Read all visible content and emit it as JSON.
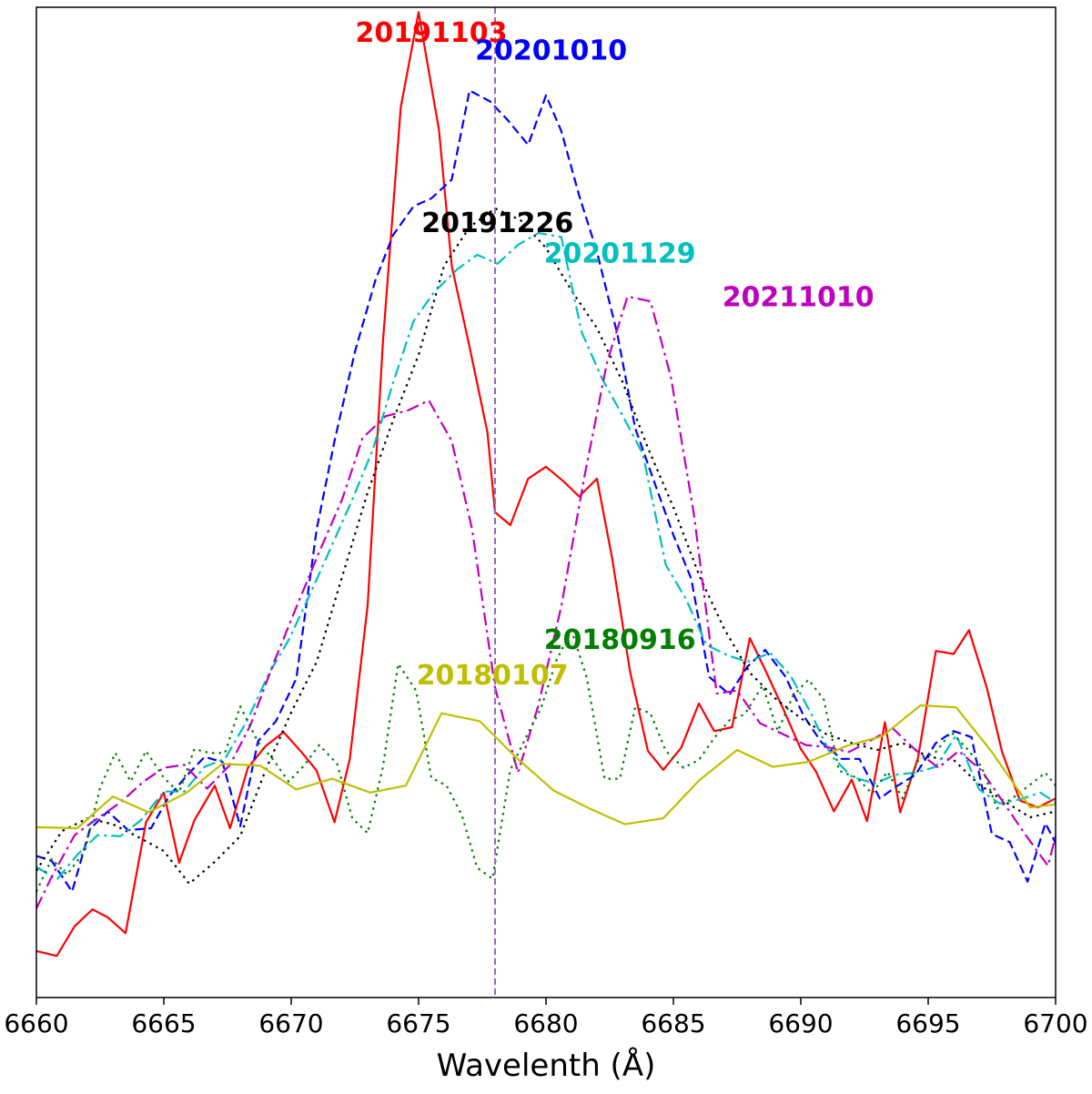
{
  "chart_data": {
    "type": "line",
    "title": "",
    "xlabel": "Wavelenth (Å)",
    "ylabel": "",
    "xlim": [
      6660,
      6700
    ],
    "ylim": [
      0,
      1
    ],
    "grid": false,
    "legend": "none",
    "reference_line": {
      "x": 6678,
      "color": "#9467bd",
      "style": "dashed"
    },
    "x_ticks": [
      "6660",
      "6665",
      "6670",
      "6675",
      "6680",
      "6685",
      "6690",
      "6695",
      "6700"
    ],
    "series": [
      {
        "name": "20191103",
        "color": "#ff0000",
        "dash": "solid",
        "label_at": [
          6675.5,
          0.965
        ],
        "x": [
          6660,
          6660.8,
          6661.5,
          6662.2,
          6662.8,
          6663.5,
          6664.3,
          6665,
          6665.6,
          6666.2,
          6667,
          6667.6,
          6668.3,
          6669,
          6669.7,
          6670.4,
          6671,
          6671.7,
          6672.3,
          6673,
          6673.6,
          6674.3,
          6675,
          6675.8,
          6676.3,
          6677,
          6677.7,
          6678,
          6678.6,
          6679.3,
          6680,
          6680.7,
          6681.3,
          6682,
          6682.6,
          6683.3,
          6684,
          6684.6,
          6685.3,
          6686,
          6686.6,
          6687.3,
          6688,
          6688.6,
          6689.3,
          6690,
          6690.6,
          6691.3,
          6692,
          6692.6,
          6693.3,
          6693.9,
          6694.6,
          6695.3,
          6696,
          6696.6,
          6697.3,
          6697.9,
          6698.6,
          6699.3,
          6700
        ],
        "y": [
          0.047,
          0.042,
          0.072,
          0.089,
          0.081,
          0.065,
          0.177,
          0.207,
          0.136,
          0.179,
          0.214,
          0.171,
          0.232,
          0.254,
          0.268,
          0.248,
          0.229,
          0.177,
          0.241,
          0.396,
          0.662,
          0.899,
          0.995,
          0.876,
          0.739,
          0.657,
          0.571,
          0.49,
          0.477,
          0.524,
          0.536,
          0.521,
          0.506,
          0.524,
          0.443,
          0.329,
          0.249,
          0.23,
          0.252,
          0.297,
          0.269,
          0.273,
          0.363,
          0.331,
          0.292,
          0.251,
          0.228,
          0.188,
          0.22,
          0.178,
          0.278,
          0.187,
          0.242,
          0.35,
          0.347,
          0.371,
          0.313,
          0.248,
          0.199,
          0.192,
          0.201
        ]
      },
      {
        "name": "20201010",
        "color": "#0000ff",
        "dash": "dashed",
        "label_at": [
          6680.2,
          0.947
        ],
        "x": [
          6660,
          6660.6,
          6661.4,
          6662.1,
          6662.8,
          6663.6,
          6664.5,
          6665.2,
          6665.9,
          6666.6,
          6667.3,
          6668,
          6668.7,
          6669.4,
          6670.2,
          6671,
          6671.7,
          6672.5,
          6673.3,
          6674,
          6674.8,
          6675.5,
          6676.3,
          6677,
          6677.8,
          6678.5,
          6679.3,
          6680,
          6680.6,
          6681.3,
          6682,
          6682.8,
          6683.5,
          6684.3,
          6685,
          6685.7,
          6686.4,
          6687.2,
          6687.9,
          6688.6,
          6689.4,
          6690.1,
          6690.8,
          6691.6,
          6692.3,
          6693.1,
          6693.8,
          6694.5,
          6695.3,
          6696,
          6696.7,
          6697.5,
          6698.2,
          6698.9,
          6699.6,
          6700
        ],
        "y": [
          0.143,
          0.138,
          0.107,
          0.17,
          0.188,
          0.169,
          0.171,
          0.203,
          0.224,
          0.243,
          0.238,
          0.173,
          0.259,
          0.279,
          0.322,
          0.473,
          0.562,
          0.652,
          0.724,
          0.77,
          0.799,
          0.807,
          0.826,
          0.916,
          0.905,
          0.886,
          0.861,
          0.911,
          0.875,
          0.81,
          0.753,
          0.67,
          0.575,
          0.517,
          0.467,
          0.423,
          0.324,
          0.306,
          0.334,
          0.351,
          0.324,
          0.285,
          0.258,
          0.241,
          0.241,
          0.201,
          0.214,
          0.225,
          0.257,
          0.269,
          0.263,
          0.165,
          0.157,
          0.117,
          0.176,
          0.156
        ]
      },
      {
        "name": "20191226",
        "color": "#000000",
        "dash": "dotted",
        "label_at": [
          6678.1,
          0.773
        ],
        "x": [
          6660,
          6661,
          6662,
          6663,
          6664,
          6665,
          6666,
          6667,
          6668,
          6669,
          6670,
          6671,
          6672,
          6673,
          6674,
          6675,
          6676,
          6677,
          6678,
          6679,
          6680,
          6681,
          6682,
          6683,
          6684,
          6685,
          6686,
          6687,
          6688,
          6689,
          6690,
          6691,
          6692,
          6693,
          6694,
          6695,
          6696,
          6697,
          6698,
          6699,
          6700
        ],
        "y": [
          0.128,
          0.168,
          0.181,
          0.175,
          0.162,
          0.148,
          0.115,
          0.137,
          0.163,
          0.23,
          0.288,
          0.339,
          0.425,
          0.51,
          0.583,
          0.649,
          0.739,
          0.778,
          0.797,
          0.785,
          0.757,
          0.714,
          0.676,
          0.622,
          0.555,
          0.495,
          0.427,
          0.372,
          0.328,
          0.302,
          0.282,
          0.266,
          0.257,
          0.25,
          0.257,
          0.243,
          0.24,
          0.215,
          0.198,
          0.182,
          0.188
        ]
      },
      {
        "name": "20201129",
        "color": "#00bfbf",
        "dash": "dashdot",
        "label_at": [
          6682.9,
          0.742
        ],
        "x": [
          6660,
          6660.8,
          6661.6,
          6662.4,
          6663.3,
          6664.1,
          6665,
          6665.8,
          6666.6,
          6667.4,
          6668.3,
          6669.1,
          6669.9,
          6670.7,
          6671.5,
          6672.4,
          6673.2,
          6674,
          6674.8,
          6675.6,
          6676.5,
          6677.3,
          6678.1,
          6678.9,
          6679.7,
          6680.6,
          6681.4,
          6682.2,
          6683,
          6683.8,
          6684.7,
          6685.5,
          6686.3,
          6687.1,
          6687.9,
          6688.8,
          6689.6,
          6690.4,
          6691.2,
          6692,
          6692.9,
          6693.7,
          6694.5,
          6695.3,
          6696.1,
          6697,
          6697.8,
          6698.6,
          6699.4,
          6700
        ],
        "y": [
          0.132,
          0.119,
          0.144,
          0.164,
          0.163,
          0.179,
          0.208,
          0.208,
          0.233,
          0.241,
          0.281,
          0.326,
          0.361,
          0.405,
          0.451,
          0.503,
          0.553,
          0.621,
          0.683,
          0.712,
          0.735,
          0.75,
          0.741,
          0.76,
          0.772,
          0.768,
          0.672,
          0.625,
          0.588,
          0.549,
          0.437,
          0.402,
          0.356,
          0.346,
          0.339,
          0.348,
          0.325,
          0.287,
          0.244,
          0.223,
          0.216,
          0.225,
          0.227,
          0.233,
          0.265,
          0.21,
          0.196,
          0.2,
          0.207,
          0.197
        ]
      },
      {
        "name": "20211010",
        "color": "#bf00bf",
        "dash": "dashdot",
        "label_at": [
          6689.9,
          0.698
        ],
        "x": [
          6660,
          6660.6,
          6661.5,
          6662.4,
          6663.3,
          6664.2,
          6665,
          6665.8,
          6666.7,
          6667.6,
          6668.4,
          6669.3,
          6670.2,
          6671.1,
          6672,
          6672.8,
          6673.7,
          6674.6,
          6675.4,
          6676.3,
          6677.1,
          6678,
          6678.9,
          6679.7,
          6680.6,
          6681.5,
          6682.4,
          6683.2,
          6684.1,
          6684.9,
          6685.8,
          6686.7,
          6687.5,
          6688.4,
          6689.3,
          6690.2,
          6691,
          6691.9,
          6692.7,
          6693.6,
          6694.5,
          6695.4,
          6696.2,
          6697.1,
          6697.9,
          6698.8,
          6699.7,
          6700
        ],
        "y": [
          0.09,
          0.122,
          0.164,
          0.181,
          0.197,
          0.218,
          0.232,
          0.235,
          0.211,
          0.235,
          0.275,
          0.337,
          0.394,
          0.45,
          0.503,
          0.565,
          0.587,
          0.593,
          0.603,
          0.562,
          0.473,
          0.313,
          0.227,
          0.295,
          0.395,
          0.525,
          0.642,
          0.708,
          0.703,
          0.627,
          0.489,
          0.307,
          0.31,
          0.277,
          0.266,
          0.255,
          0.253,
          0.248,
          0.259,
          0.272,
          0.25,
          0.232,
          0.249,
          0.229,
          0.199,
          0.165,
          0.133,
          0.163
        ]
      },
      {
        "name": "20180916",
        "color": "#007f00",
        "dash": "dotted",
        "label_at": [
          6682.9,
          0.352
        ],
        "x": [
          6660,
          6660.6,
          6661.2,
          6661.9,
          6662.5,
          6663.1,
          6663.7,
          6664.3,
          6665,
          6665.6,
          6666.2,
          6666.8,
          6667.4,
          6668,
          6668.7,
          6669.3,
          6669.9,
          6670.5,
          6671.1,
          6671.8,
          6672.4,
          6673,
          6673.6,
          6674.2,
          6674.9,
          6675.5,
          6676.1,
          6676.7,
          6677.3,
          6677.9,
          6678.6,
          6679.2,
          6679.8,
          6680.4,
          6681,
          6681.6,
          6682.3,
          6682.9,
          6683.5,
          6684.1,
          6684.7,
          6685.4,
          6686,
          6686.6,
          6687.2,
          6687.8,
          6688.5,
          6689.1,
          6689.7,
          6690.3,
          6690.9,
          6691.5,
          6692.2,
          6692.8,
          6693.4,
          6694,
          6694.6,
          6695.3,
          6695.9,
          6696.5,
          6697.1,
          6697.7,
          6698.4,
          6699,
          6699.6,
          6700
        ],
        "y": [
          0.107,
          0.14,
          0.124,
          0.148,
          0.212,
          0.247,
          0.218,
          0.249,
          0.222,
          0.207,
          0.251,
          0.247,
          0.247,
          0.294,
          0.258,
          0.24,
          0.218,
          0.234,
          0.255,
          0.236,
          0.181,
          0.166,
          0.233,
          0.337,
          0.31,
          0.222,
          0.214,
          0.184,
          0.131,
          0.12,
          0.23,
          0.262,
          0.292,
          0.34,
          0.371,
          0.323,
          0.221,
          0.221,
          0.293,
          0.287,
          0.249,
          0.232,
          0.24,
          0.262,
          0.28,
          0.286,
          0.315,
          0.269,
          0.305,
          0.321,
          0.301,
          0.229,
          0.222,
          0.206,
          0.228,
          0.201,
          0.239,
          0.248,
          0.268,
          0.252,
          0.233,
          0.191,
          0.203,
          0.215,
          0.227,
          0.214
        ]
      },
      {
        "name": "20180107",
        "color": "#bfbf00",
        "dash": "solid",
        "label_at": [
          6677.9,
          0.316
        ],
        "x": [
          6660,
          6661.6,
          6663,
          6664.4,
          6665.9,
          6667.3,
          6668.8,
          6670.2,
          6671.6,
          6673.1,
          6674.5,
          6675.9,
          6677.4,
          6678.8,
          6680.3,
          6681.7,
          6683.1,
          6684.6,
          6686,
          6687.5,
          6688.9,
          6690.3,
          6691.8,
          6693.2,
          6694.7,
          6696.1,
          6697.5,
          6699,
          6700
        ],
        "y": [
          0.172,
          0.171,
          0.203,
          0.187,
          0.207,
          0.236,
          0.234,
          0.21,
          0.221,
          0.207,
          0.214,
          0.287,
          0.279,
          0.243,
          0.209,
          0.191,
          0.175,
          0.181,
          0.219,
          0.25,
          0.233,
          0.238,
          0.254,
          0.264,
          0.295,
          0.293,
          0.248,
          0.192,
          0.195
        ]
      }
    ]
  }
}
